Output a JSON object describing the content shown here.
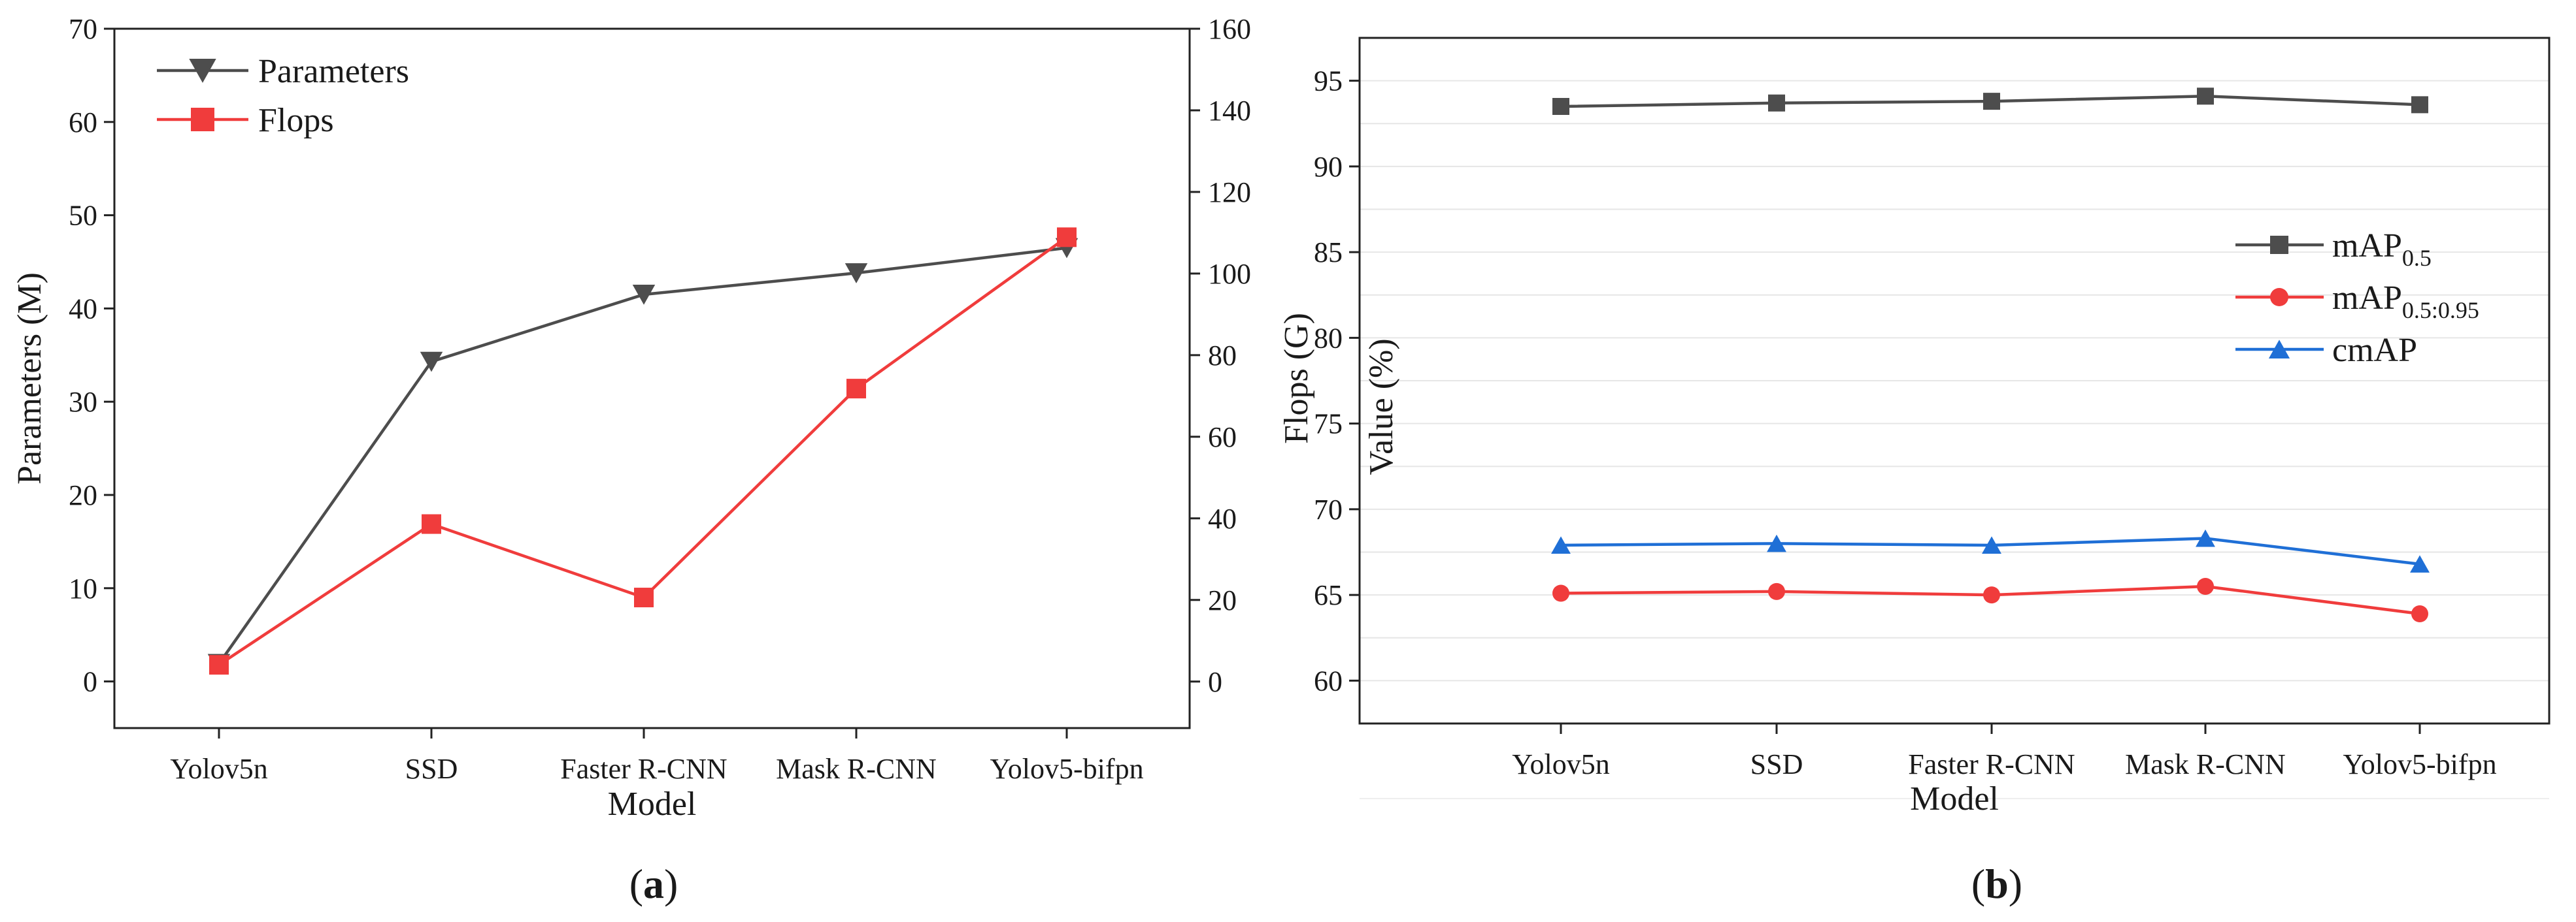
{
  "chart_data": [
    {
      "type": "line",
      "panel_label": "(a)",
      "panel_letter": "a",
      "categories": [
        "Yolov5n",
        "SSD",
        "Faster R-CNN",
        "Mask R-CNN",
        "Yolov5-bifpn"
      ],
      "xlabel": "Model",
      "ylabel": "Parameters (M)",
      "y2label": "Flops (G)",
      "ylim": [
        -5,
        70
      ],
      "y2lim": [
        -11.4,
        160
      ],
      "yticks": [
        0,
        10,
        20,
        30,
        40,
        50,
        60,
        70
      ],
      "y2ticks": [
        0,
        20,
        40,
        60,
        80,
        100,
        120,
        140,
        160
      ],
      "grid": false,
      "legend": "top-left",
      "series": [
        {
          "name": "Parameters",
          "axis": "left",
          "color": "#4d4d4d",
          "marker": "triangle-down",
          "values": [
            1.9,
            34.3,
            41.5,
            43.8,
            46.5
          ]
        },
        {
          "name": "Flops",
          "axis": "right",
          "color": "#f03c3c",
          "marker": "square",
          "values": [
            4.1,
            38.6,
            20.6,
            71.8,
            108.9
          ]
        }
      ]
    },
    {
      "type": "line",
      "panel_label": "(b)",
      "panel_letter": "b",
      "categories": [
        "Yolov5n",
        "SSD",
        "Faster R-CNN",
        "Mask R-CNN",
        "Yolov5-bifpn"
      ],
      "xlabel": "Model",
      "ylabel": "Value (%)",
      "ylim": [
        57.5,
        97.5
      ],
      "yticks": [
        60,
        65,
        70,
        75,
        80,
        85,
        90,
        95
      ],
      "grid": true,
      "legend": "right",
      "series": [
        {
          "name": "mAP",
          "subscript": "0.5",
          "color": "#4d4d4d",
          "marker": "square",
          "values": [
            93.5,
            93.7,
            93.8,
            94.1,
            93.6
          ]
        },
        {
          "name": "mAP",
          "subscript": "0.5:0.95",
          "color": "#f03c3c",
          "marker": "circle",
          "values": [
            65.1,
            65.2,
            65.0,
            65.5,
            63.9
          ]
        },
        {
          "name": "cmAP",
          "subscript": "",
          "color": "#1f6fd6",
          "marker": "triangle-up",
          "values": [
            67.9,
            68.0,
            67.9,
            68.3,
            66.8
          ]
        }
      ]
    }
  ]
}
